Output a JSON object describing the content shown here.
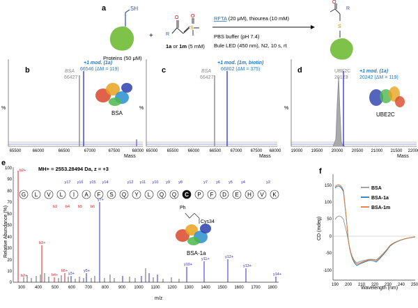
{
  "panel_labels": {
    "a": "a",
    "b": "b",
    "c": "c",
    "d": "d",
    "e": "e",
    "f": "f"
  },
  "scheme": {
    "sh_label": "SH",
    "protein_label": "Proteins (50 μM)",
    "plus": "+",
    "reagent_label_pre": "1a",
    "reagent_label_mid": " or ",
    "reagent_label_post": "1m",
    "reagent_conc": " (5 mM)",
    "r_label": "R",
    "o_label": "O",
    "s_label": "S",
    "cond_line1": "RFTA (20 μM), thiourea (10 mM)",
    "cond_line2": "PBS buffer (pH 7.4)",
    "cond_line3": "Bule LED (450 nm), N2, 10 s, rt"
  },
  "ms_panels": [
    {
      "id": "b",
      "gray_label": "BSA",
      "gray_value": "66427",
      "blue_label": "+1 mod. (1a)",
      "blue_value": "66546 (ΔM = 119)",
      "ylabel": "%",
      "xlabel": "Mass",
      "xticks": [
        "65500",
        "66000",
        "66500",
        "67000",
        "67500",
        "68000"
      ],
      "protein_caption": "BSA"
    },
    {
      "id": "c",
      "gray_label": "BSA",
      "gray_value": "66427",
      "blue_label": "+1 mod. (1m, biotin)",
      "blue_value": "66802 (ΔM = 375)",
      "ylabel": "%",
      "xlabel": "Mass",
      "xticks": [
        "65000",
        "65500",
        "66000",
        "66500",
        "67000",
        "67500",
        "68000"
      ]
    },
    {
      "id": "d",
      "gray_label": "UBE2C",
      "gray_value": "20123",
      "blue_label": "+1 mod. (1a)",
      "blue_value": "20242 (ΔM = 119)",
      "ylabel": "%",
      "xlabel": "Mass",
      "xticks": [
        "19000",
        "19500",
        "20000",
        "20500",
        "21000",
        "21500",
        "22000"
      ],
      "protein_caption": "UBE2C"
    }
  ],
  "msms": {
    "header": "MH+ = 2553.28494 Da, z = +3",
    "ylabel": "Relative Abundance (%)",
    "xlabel": "m/z",
    "yticks": [
      "0",
      "10",
      "20",
      "30",
      "40",
      "50",
      "60",
      "70",
      "80",
      "90",
      "100"
    ],
    "xticks": [
      "300",
      "400",
      "500",
      "600",
      "700",
      "800",
      "900",
      "1000",
      "1100",
      "1200",
      "1300",
      "1400",
      "1500",
      "1600",
      "1700",
      "1800"
    ],
    "sequence": [
      "G",
      "L",
      "V",
      "L",
      "I",
      "A",
      "F",
      "S",
      "Q",
      "Y",
      "L",
      "Q",
      "Q",
      "C",
      "P",
      "F",
      "D",
      "E",
      "H",
      "V",
      "K"
    ],
    "y_ions_top": [
      "y17",
      "y16",
      "y15",
      "y14",
      "y12",
      "y11",
      "y10",
      "y9",
      "y8",
      "y7",
      "y6",
      "y5",
      "y4",
      "y2"
    ],
    "b_ions_bottom": [
      "b3",
      "b4",
      "b5",
      "b6"
    ],
    "cys_label": "Cys34",
    "ph_label": "Ph",
    "protein_caption": "BSA-1a"
  },
  "cd": {
    "ylabel": "CD (mdeg)",
    "xlabel": "Wavelength (nm)",
    "yticks": [
      "-100",
      "-50",
      "0",
      "50",
      "100",
      "150"
    ],
    "xticks": [
      "190",
      "200",
      "210",
      "220",
      "230",
      "240",
      "250"
    ],
    "legend": [
      {
        "name": "BSA",
        "color": "#999999"
      },
      {
        "name": "BSA-1a",
        "color": "#1f7bbf"
      },
      {
        "name": "BSA-1m",
        "color": "#e07b39"
      }
    ]
  },
  "colors": {
    "blue": "#3a3ad8",
    "gray": "#8a8a8a",
    "red": "#d62020",
    "cyan_text": "#1f78c8",
    "protein_green": "#7ec24a"
  }
}
